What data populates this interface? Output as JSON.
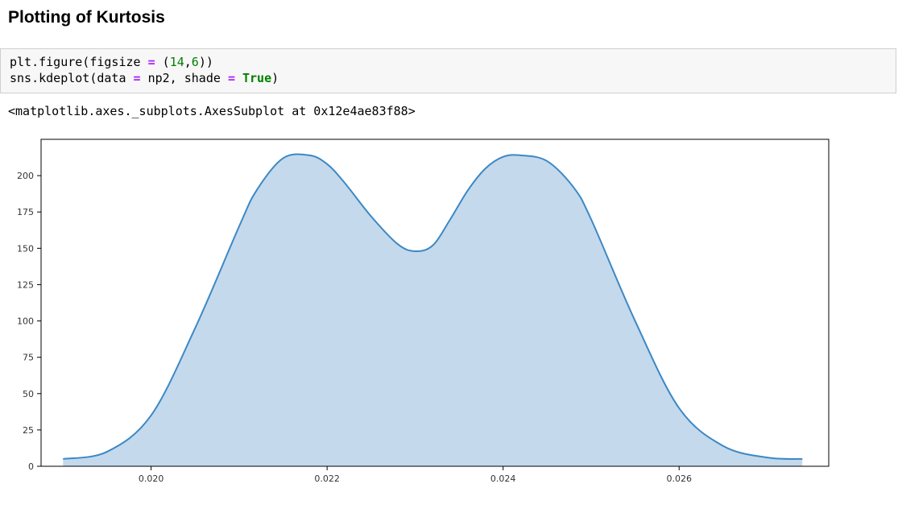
{
  "notebook": {
    "heading": "Plotting of Kurtosis",
    "code": {
      "line1": {
        "a": "plt.figure(figsize ",
        "op": "=",
        "b": " (",
        "n1": "14",
        "c": ",",
        "n2": "6",
        "d": "))"
      },
      "line2": {
        "a": "sns.kdeplot(data ",
        "op1": "=",
        "b": " np2, shade ",
        "op2": "=",
        "c": " ",
        "kw": "True",
        "d": ")"
      }
    },
    "output": "<matplotlib.axes._subplots.AxesSubplot at 0x12e4ae83f88>"
  },
  "colors": {
    "line": "#3c88c4",
    "fill": "#c4d9ec",
    "axis": "#000000"
  },
  "chart_data": {
    "type": "area",
    "title": "",
    "xlabel": "",
    "ylabel": "",
    "xlim": [
      0.01875,
      0.0277
    ],
    "ylim": [
      0,
      225
    ],
    "x_ticks": [
      0.02,
      0.022,
      0.024,
      0.026
    ],
    "x_tick_labels": [
      "0.020",
      "0.022",
      "0.024",
      "0.026"
    ],
    "y_ticks": [
      0,
      25,
      50,
      75,
      100,
      125,
      150,
      175,
      200
    ],
    "y_tick_labels": [
      "0",
      "25",
      "50",
      "75",
      "100",
      "125",
      "150",
      "175",
      "200"
    ],
    "grid": false,
    "series": [
      {
        "x": [
          0.019,
          0.0195,
          0.02,
          0.0205,
          0.021,
          0.0212,
          0.0215,
          0.0218,
          0.022,
          0.0222,
          0.0225,
          0.0228,
          0.023,
          0.0232,
          0.0234,
          0.0236,
          0.0238,
          0.024,
          0.0242,
          0.0245,
          0.0248,
          0.025,
          0.0255,
          0.026,
          0.0265,
          0.027,
          0.0274
        ],
        "y": [
          5,
          10,
          35,
          95,
          165,
          190,
          212,
          214,
          208,
          195,
          172,
          153,
          148,
          152,
          170,
          190,
          205,
          213,
          214,
          210,
          192,
          170,
          100,
          40,
          14,
          6,
          5
        ]
      }
    ]
  }
}
